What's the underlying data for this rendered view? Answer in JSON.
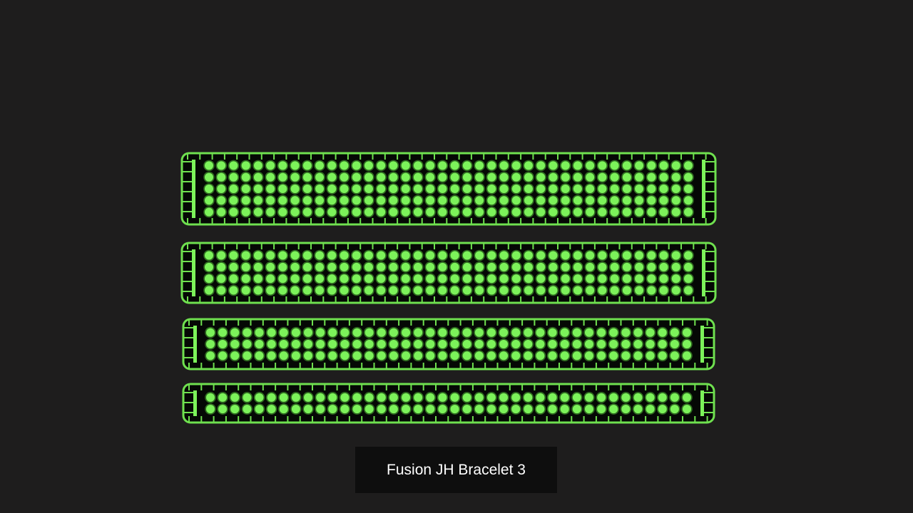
{
  "lightbox": {
    "caption": "Fusion JH Bracelet 3",
    "image": {
      "subject": "four green bead bracelets",
      "bracelet_bead_rows": [
        5,
        4,
        3,
        2
      ],
      "bead_columns": 40,
      "colors": {
        "background": "#1e1d1d",
        "frame": "#6fe04f",
        "bead": "#7cf25a",
        "caption_bg": "#0e0e0e"
      }
    }
  }
}
